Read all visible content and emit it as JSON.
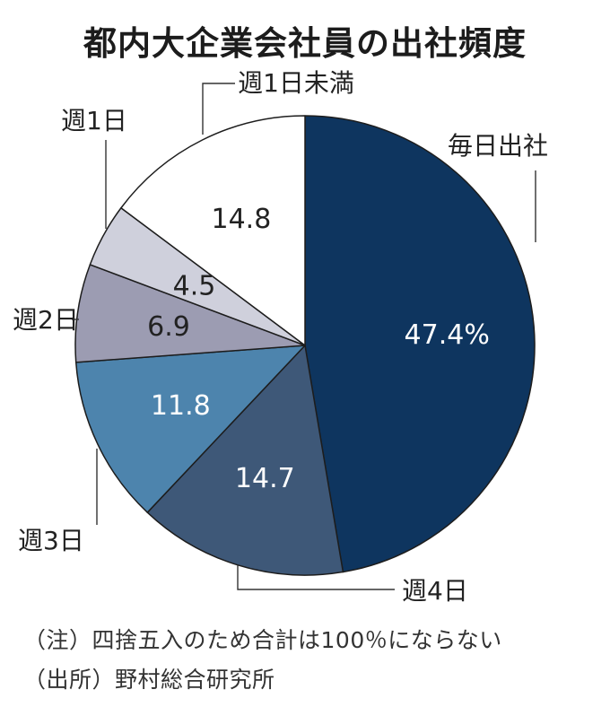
{
  "title": "都内大企業会社員の出社頻度",
  "chart_data": {
    "type": "pie",
    "title": "都内大企業会社員の出社頻度",
    "slices": [
      {
        "name": "毎日出社",
        "value": 47.4,
        "value_label": "47.4%",
        "color": "#0e355f",
        "label_color": "#ffffff"
      },
      {
        "name": "週4日",
        "value": 14.7,
        "value_label": "14.7",
        "color": "#3e5878",
        "label_color": "#ffffff"
      },
      {
        "name": "週3日",
        "value": 11.8,
        "value_label": "11.8",
        "color": "#4d84ad",
        "label_color": "#ffffff"
      },
      {
        "name": "週2日",
        "value": 6.9,
        "value_label": "6.9",
        "color": "#9c9cb2",
        "label_color": "#222222"
      },
      {
        "name": "週1日",
        "value": 4.5,
        "value_label": "4.5",
        "color": "#cfd0dc",
        "label_color": "#222222"
      },
      {
        "name": "週1日未満",
        "value": 14.8,
        "value_label": "14.8",
        "color": "#ffffff",
        "label_color": "#222222"
      }
    ]
  },
  "notes": {
    "note": "（注）四捨五入のため合計は100％にならない",
    "source": "（出所）野村総合研究所"
  }
}
